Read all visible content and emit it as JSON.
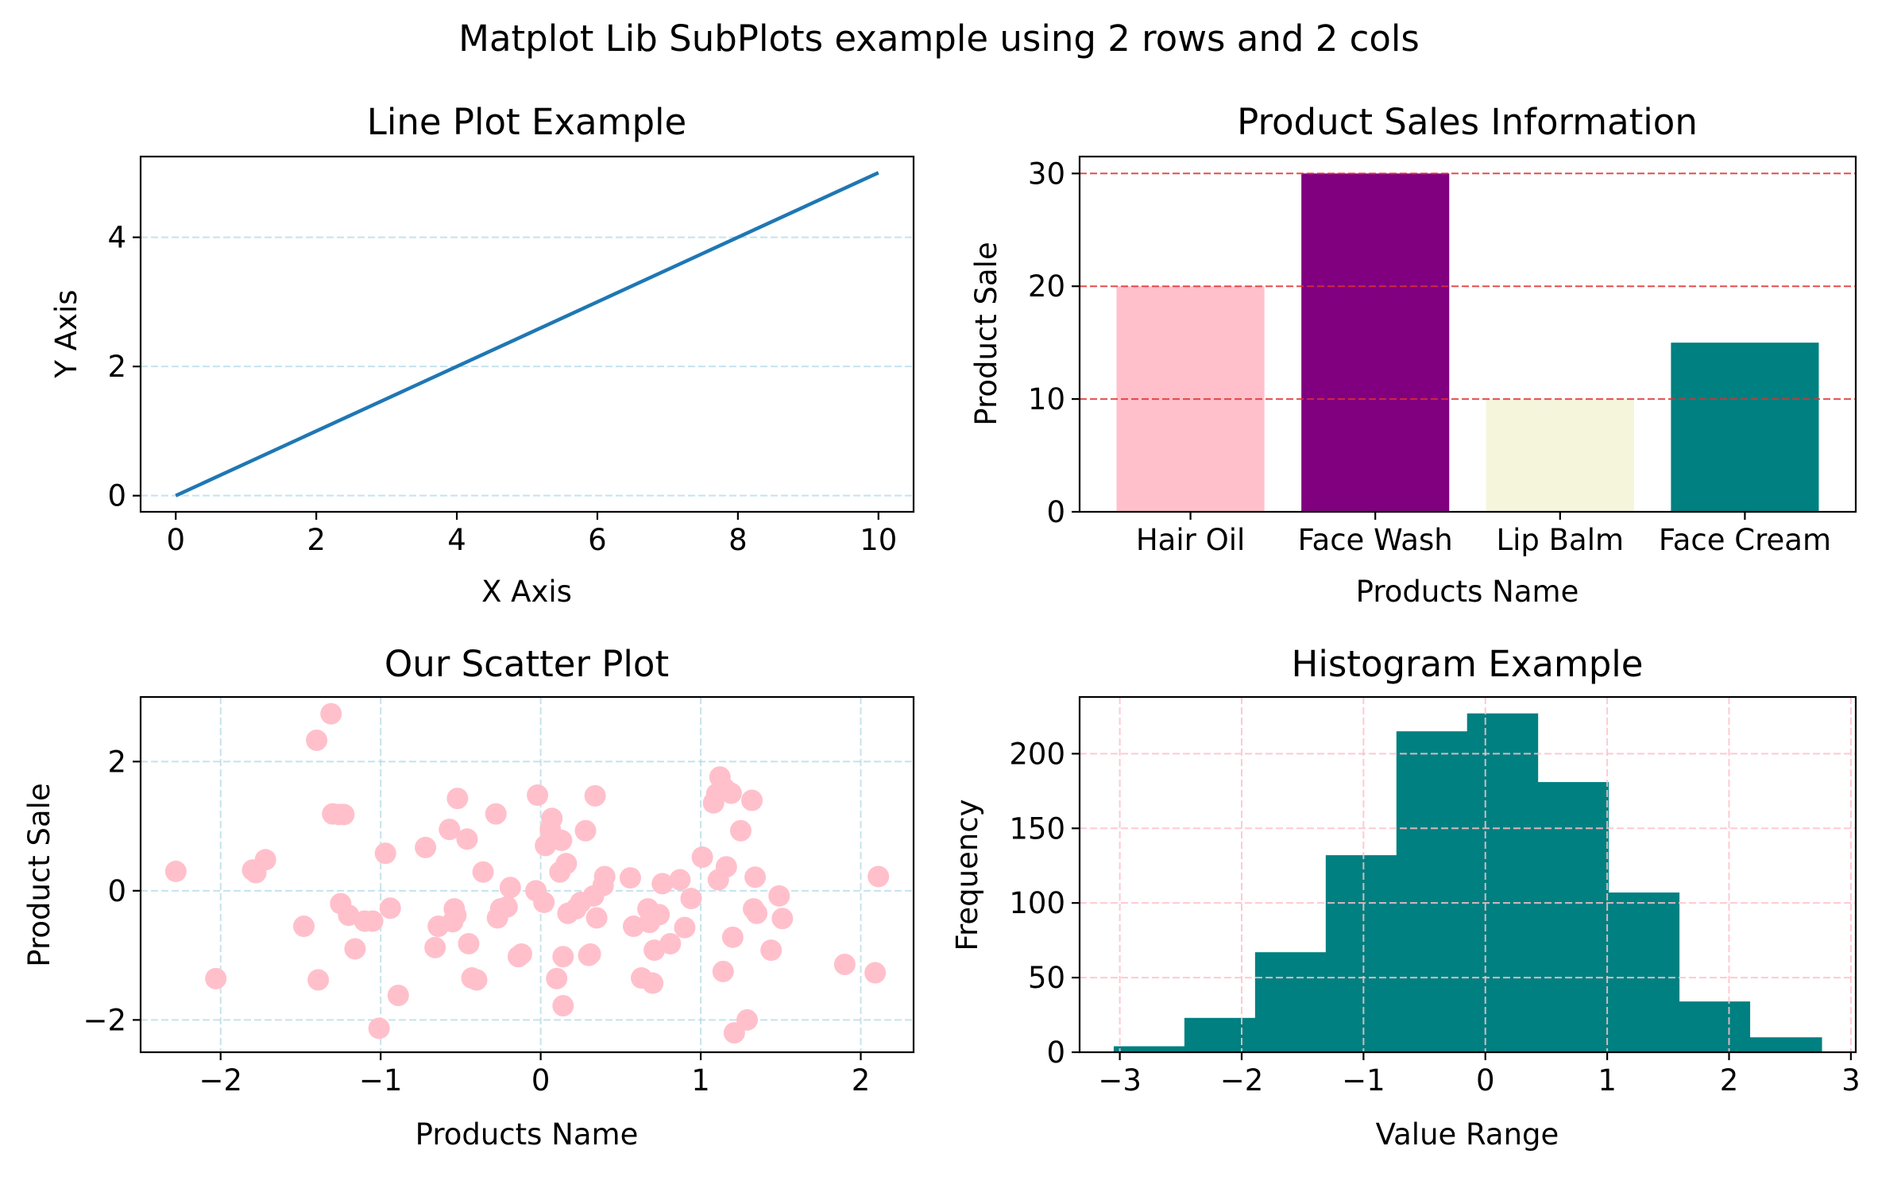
{
  "figure": {
    "suptitle": "Matplot Lib SubPlots example using 2 rows and 2 cols"
  },
  "chart_data": [
    {
      "type": "line",
      "title": "Line Plot Example",
      "xlabel": "X Axis",
      "ylabel": "Y Axis",
      "x": [
        0,
        10
      ],
      "y": [
        0,
        5
      ],
      "xlim": [
        -0.5,
        10.5
      ],
      "ylim": [
        -0.25,
        5.25
      ],
      "xticks": [
        0,
        2,
        4,
        6,
        8,
        10
      ],
      "yticks": [
        0,
        2,
        4
      ],
      "xtick_labels": [
        "0",
        "2",
        "4",
        "6",
        "8",
        "10"
      ],
      "ytick_labels": [
        "0",
        "2",
        "4"
      ],
      "line_color": "#1f77b4",
      "grid": {
        "axis": "y",
        "style": "dashed",
        "color": "#add8e6"
      },
      "legend": "none"
    },
    {
      "type": "bar",
      "title": "Product Sales Information",
      "xlabel": "Products Name",
      "ylabel": "Product Sale",
      "categories": [
        "Hair Oil",
        "Face Wash",
        "Lip Balm",
        "Face Cream"
      ],
      "values": [
        20,
        30,
        10,
        15
      ],
      "colors": [
        "#ffc0cb",
        "#800080",
        "#f5f5dc",
        "#008080"
      ],
      "ylim": [
        0,
        31.5
      ],
      "yticks": [
        0,
        10,
        20,
        30
      ],
      "ytick_labels": [
        "0",
        "10",
        "20",
        "30"
      ],
      "grid": {
        "axis": "y",
        "style": "dashed",
        "color": "#e03030"
      },
      "legend": "none"
    },
    {
      "type": "scatter",
      "title": "Our Scatter Plot",
      "xlabel": "Products Name",
      "ylabel": "Product Sale",
      "point_color": "#ffc0cb",
      "xlim": [
        -2.5,
        2.33
      ],
      "ylim": [
        -2.5,
        3.0
      ],
      "xticks": [
        -2,
        -1,
        0,
        1,
        2
      ],
      "yticks": [
        -2,
        0,
        2
      ],
      "xtick_labels": [
        "−2",
        "−1",
        "0",
        "1",
        "2"
      ],
      "ytick_labels": [
        "−2",
        "0",
        "2"
      ],
      "grid": {
        "axis": "both",
        "style": "dashed",
        "color": "#add8e6"
      },
      "legend": "none",
      "points": [
        [
          -2.28,
          0.3
        ],
        [
          -2.03,
          -1.36
        ],
        [
          -1.8,
          0.32
        ],
        [
          -1.78,
          0.28
        ],
        [
          -1.72,
          0.48
        ],
        [
          -1.48,
          -0.55
        ],
        [
          -1.4,
          2.33
        ],
        [
          -1.39,
          -1.38
        ],
        [
          -1.31,
          2.74
        ],
        [
          -1.3,
          1.19
        ],
        [
          -1.26,
          1.18
        ],
        [
          -1.25,
          -0.2
        ],
        [
          -1.23,
          1.18
        ],
        [
          -1.2,
          -0.38
        ],
        [
          -1.16,
          -0.9
        ],
        [
          -1.1,
          -0.47
        ],
        [
          -1.05,
          -0.47
        ],
        [
          -1.01,
          -2.13
        ],
        [
          -0.97,
          0.58
        ],
        [
          -0.94,
          -0.27
        ],
        [
          -0.89,
          -1.62
        ],
        [
          -0.72,
          0.67
        ],
        [
          -0.66,
          -0.88
        ],
        [
          -0.64,
          -0.55
        ],
        [
          -0.57,
          0.95
        ],
        [
          -0.55,
          -0.48
        ],
        [
          -0.54,
          -0.28
        ],
        [
          -0.53,
          -0.38
        ],
        [
          -0.52,
          1.43
        ],
        [
          -0.46,
          0.8
        ],
        [
          -0.45,
          -0.82
        ],
        [
          -0.43,
          -1.35
        ],
        [
          -0.4,
          -1.38
        ],
        [
          -0.36,
          0.29
        ],
        [
          -0.28,
          1.19
        ],
        [
          -0.27,
          -0.42
        ],
        [
          -0.25,
          -0.28
        ],
        [
          -0.21,
          -0.25
        ],
        [
          -0.19,
          0.05
        ],
        [
          -0.14,
          -1.02
        ],
        [
          -0.12,
          -0.98
        ],
        [
          -0.03,
          0.0
        ],
        [
          -0.02,
          1.48
        ],
        [
          0.02,
          -0.18
        ],
        [
          0.03,
          0.7
        ],
        [
          0.06,
          0.95
        ],
        [
          0.07,
          1.12
        ],
        [
          0.1,
          -1.36
        ],
        [
          0.12,
          0.29
        ],
        [
          0.13,
          0.78
        ],
        [
          0.14,
          -1.02
        ],
        [
          0.14,
          -1.78
        ],
        [
          0.16,
          0.42
        ],
        [
          0.17,
          -0.35
        ],
        [
          0.22,
          -0.28
        ],
        [
          0.25,
          -0.18
        ],
        [
          0.28,
          0.93
        ],
        [
          0.3,
          -1.0
        ],
        [
          0.31,
          -0.98
        ],
        [
          0.33,
          -0.08
        ],
        [
          0.34,
          1.47
        ],
        [
          0.35,
          -0.42
        ],
        [
          0.39,
          0.08
        ],
        [
          0.4,
          0.22
        ],
        [
          0.56,
          0.2
        ],
        [
          0.58,
          -0.55
        ],
        [
          0.63,
          -1.35
        ],
        [
          0.67,
          -0.28
        ],
        [
          0.68,
          -0.49
        ],
        [
          0.7,
          -1.43
        ],
        [
          0.71,
          -0.92
        ],
        [
          0.74,
          -0.37
        ],
        [
          0.76,
          0.11
        ],
        [
          0.81,
          -0.82
        ],
        [
          0.87,
          0.17
        ],
        [
          0.9,
          -0.57
        ],
        [
          0.94,
          -0.12
        ],
        [
          1.01,
          0.52
        ],
        [
          1.08,
          1.36
        ],
        [
          1.1,
          1.5
        ],
        [
          1.11,
          0.17
        ],
        [
          1.12,
          1.76
        ],
        [
          1.14,
          -1.25
        ],
        [
          1.15,
          1.58
        ],
        [
          1.16,
          0.37
        ],
        [
          1.19,
          1.51
        ],
        [
          1.2,
          -0.72
        ],
        [
          1.21,
          -2.2
        ],
        [
          1.25,
          0.93
        ],
        [
          1.29,
          -2.0
        ],
        [
          1.32,
          1.4
        ],
        [
          1.33,
          -0.28
        ],
        [
          1.34,
          0.21
        ],
        [
          1.35,
          -0.35
        ],
        [
          1.44,
          -0.92
        ],
        [
          1.49,
          -0.08
        ],
        [
          1.51,
          -0.43
        ],
        [
          1.9,
          -1.14
        ],
        [
          2.09,
          -1.27
        ],
        [
          2.11,
          0.22
        ]
      ]
    },
    {
      "type": "bar",
      "subtype": "histogram",
      "title": "Histogram Example",
      "xlabel": "Value Range",
      "ylabel": "Frequency",
      "bar_color": "#008080",
      "bin_edges": [
        -3.05,
        -2.47,
        -1.89,
        -1.31,
        -0.73,
        -0.15,
        0.43,
        1.01,
        1.59,
        2.17,
        2.76
      ],
      "values": [
        4,
        23,
        67,
        132,
        215,
        227,
        181,
        107,
        34,
        10
      ],
      "xlim": [
        -3.33,
        3.04
      ],
      "ylim": [
        0,
        238
      ],
      "xticks": [
        -3,
        -2,
        -1,
        0,
        1,
        2,
        3
      ],
      "yticks": [
        0,
        50,
        100,
        150,
        200
      ],
      "xtick_labels": [
        "−3",
        "−2",
        "−1",
        "0",
        "1",
        "2",
        "3"
      ],
      "ytick_labels": [
        "0",
        "50",
        "100",
        "150",
        "200"
      ],
      "grid": {
        "axis": "both",
        "style": "dashed",
        "color": "#ffc0cb"
      },
      "legend": "none"
    }
  ]
}
